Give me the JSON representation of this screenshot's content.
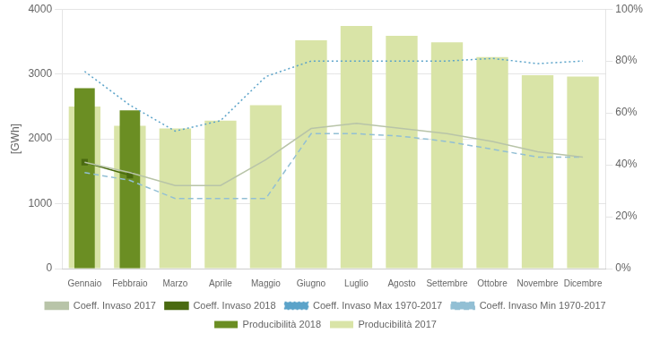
{
  "chart_data": {
    "type": "bar",
    "categories": [
      "Gennaio",
      "Febbraio",
      "Marzo",
      "Aprile",
      "Maggio",
      "Giugno",
      "Luglio",
      "Agosto",
      "Settembre",
      "Ottobre",
      "Novembre",
      "Dicembre"
    ],
    "ylabel": "[GWh]",
    "ylim": [
      0,
      4000
    ],
    "yticks": [
      0,
      1000,
      2000,
      3000,
      4000
    ],
    "y2lim": [
      0,
      1.0
    ],
    "y2ticks": [
      {
        "value": 0.0,
        "label": "0%"
      },
      {
        "value": 0.2,
        "label": "20%"
      },
      {
        "value": 0.4,
        "label": "40%"
      },
      {
        "value": 0.6,
        "label": "60%"
      },
      {
        "value": 0.8,
        "label": "80%"
      },
      {
        "value": 1.0,
        "label": "100%"
      }
    ],
    "grid": true,
    "legend": "bottom",
    "series": [
      {
        "name": "Producibilità 2018",
        "type": "bar",
        "color": "#6b8e23",
        "values": [
          2780,
          2440,
          null,
          null,
          null,
          null,
          null,
          null,
          null,
          null,
          null,
          null
        ]
      },
      {
        "name": "Producibilità 2017",
        "type": "bar",
        "color": "#d9e4a7",
        "values": [
          2500,
          2200,
          2160,
          2280,
          2520,
          3520,
          3740,
          3590,
          3490,
          3260,
          2980,
          2960
        ]
      },
      {
        "name": "Coeff. Invaso 2017",
        "type": "line",
        "axis": "y2",
        "color": "#b8c4a8",
        "line_style": "solid",
        "marker": "none",
        "values": [
          0.41,
          0.37,
          0.32,
          0.32,
          0.42,
          0.54,
          0.56,
          0.54,
          0.52,
          0.49,
          0.45,
          0.43
        ]
      },
      {
        "name": "Coeff. Invaso 2018",
        "type": "line",
        "axis": "y2",
        "color": "#4a6a10",
        "line_style": "solid",
        "marker": "square",
        "values": [
          0.41,
          0.36,
          null,
          null,
          null,
          null,
          null,
          null,
          null,
          null,
          null,
          null
        ]
      },
      {
        "name": "Coeff. Invaso Max 1970-2017",
        "type": "line",
        "axis": "y2",
        "color": "#5ba3c9",
        "line_style": "dotted",
        "marker": "none",
        "values": [
          0.76,
          0.63,
          0.53,
          0.57,
          0.74,
          0.8,
          0.8,
          0.8,
          0.8,
          0.81,
          0.79,
          0.8
        ]
      },
      {
        "name": "Coeff. Invaso Min 1970-2017",
        "type": "line",
        "axis": "y2",
        "color": "#92bfd4",
        "line_style": "dashed",
        "marker": "none",
        "values": [
          0.37,
          0.34,
          0.27,
          0.27,
          0.27,
          0.52,
          0.52,
          0.51,
          0.49,
          0.46,
          0.43,
          0.43
        ]
      }
    ]
  }
}
